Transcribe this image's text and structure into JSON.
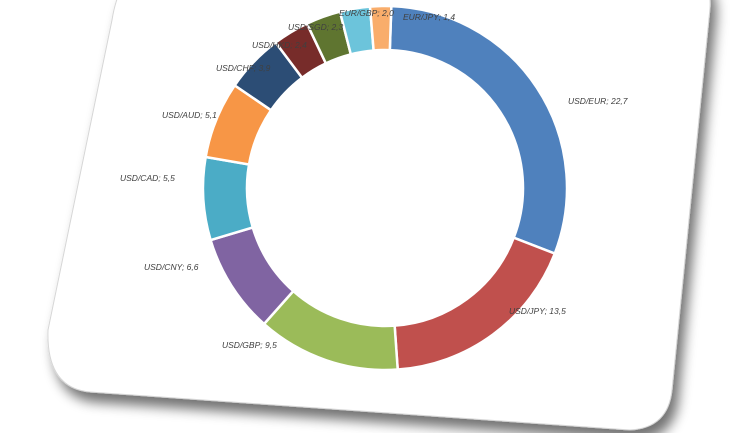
{
  "chart_data": {
    "type": "pie",
    "style": "donut",
    "start": "top, clockwise",
    "slices": [
      {
        "label": "USD/EUR; 22,7",
        "name": "USD/EUR",
        "value": 22.7,
        "color": "#4F81BD"
      },
      {
        "label": "USD/JPY; 13,5",
        "name": "USD/JPY",
        "value": 13.5,
        "color": "#C0504D"
      },
      {
        "label": "USD/GBP; 9,5",
        "name": "USD/GBP",
        "value": 9.5,
        "color": "#9BBB59"
      },
      {
        "label": "USD/CNY; 6,6",
        "name": "USD/CNY",
        "value": 6.6,
        "color": "#8064A2"
      },
      {
        "label": "USD/CAD; 5,5",
        "name": "USD/CAD",
        "value": 5.5,
        "color": "#4BACC6"
      },
      {
        "label": "USD/AUD; 5,1",
        "name": "USD/AUD",
        "value": 5.1,
        "color": "#F79646"
      },
      {
        "label": "USD/CHF; 3,9",
        "name": "USD/CHF",
        "value": 3.9,
        "color": "#2C4D75"
      },
      {
        "label": "USD/HKD; 2,4",
        "name": "USD/HKD",
        "value": 2.4,
        "color": "#772C2A"
      },
      {
        "label": "USD/SGD; 2,3",
        "name": "USD/SGD",
        "value": 2.3,
        "color": "#5F7530"
      },
      {
        "label": "EUR/GBP; 2,0",
        "name": "EUR/GBP",
        "value": 2.0,
        "color": "#6CC4DB"
      },
      {
        "label": "EUR/JPY; 1,4",
        "name": "EUR/JPY",
        "value": 1.4,
        "color": "#F9AD6B"
      }
    ]
  }
}
